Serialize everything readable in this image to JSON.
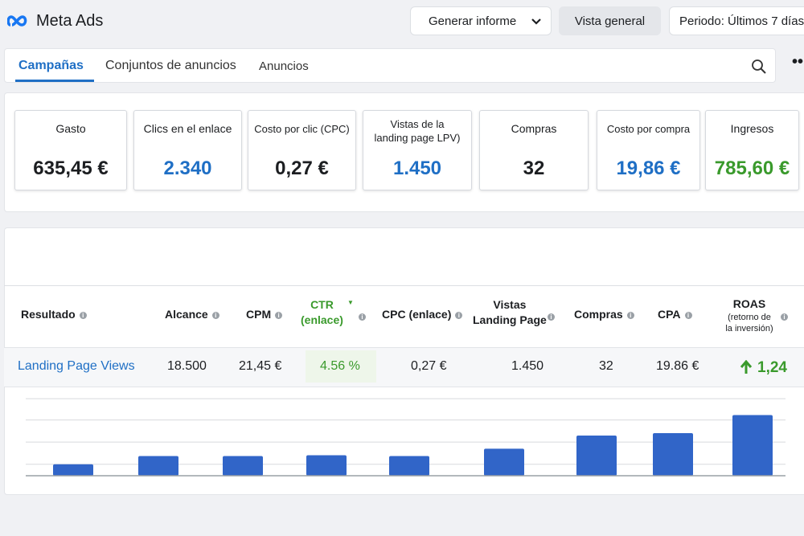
{
  "header": {
    "title": "Meta Ads",
    "buttons": [
      "Generar informe",
      "Vista general",
      "Periodo: Últimos 7 días"
    ]
  },
  "tabs": [
    "Campañas",
    "Conjuntos de anuncios",
    "Anuncios"
  ],
  "kpis": [
    {
      "label": "Gasto",
      "value": "635,45 €"
    },
    {
      "label": "Clics en el enlace",
      "value": "2.340"
    },
    {
      "label": "Costo por clic (CPC)",
      "value": "0,27 €"
    },
    {
      "label": "Vistas de la landing page LPV)",
      "value": "1.450"
    },
    {
      "label": "Compras",
      "value": "32"
    },
    {
      "label": "Costo por compra",
      "value": "19,86 €"
    },
    {
      "label": "Ingresos",
      "value": "785,60 €"
    }
  ],
  "table": {
    "columns": [
      "Resultado",
      "Alcance",
      "CPM",
      "CTR\n(enlace)",
      "CPC (enlace)",
      "Vistas\nLanding Page",
      "Compras",
      "CPA",
      "ROAS"
    ],
    "roas_note": "(retorno de\nla inversión)",
    "rows": [
      [
        "Landing Page Views",
        "18.500",
        "21,45 €",
        "4.56 %",
        "0,27 €",
        "1.450",
        "32",
        "19.86 €",
        "1,24"
      ]
    ]
  },
  "chart_data": {
    "type": "bar",
    "values": [
      14,
      24,
      24,
      25,
      24,
      33,
      49,
      52,
      74
    ],
    "color": "#3165c8",
    "ylim": [
      0,
      100
    ],
    "grid_lines": [
      14,
      41,
      68,
      94
    ]
  }
}
